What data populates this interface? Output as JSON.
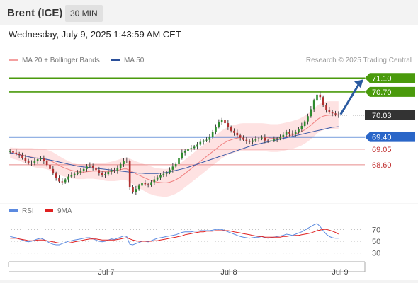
{
  "header": {
    "instrument": "Brent (ICE)",
    "timeframe": "30 MIN",
    "datetime": "Wednesday, July 9, 2025 1:43:59 AM CET"
  },
  "legend": {
    "ma20": "MA 20 + Bollinger Bands",
    "ma50": "MA 50",
    "credit": "Research © 2025 Trading Central"
  },
  "colors": {
    "resistance": "#4a9a0c",
    "support": "#2a66c8",
    "ma20": "#f08080",
    "band": "#fdd8d8",
    "ma50": "#3a5aa8",
    "candle_up": "#2e8b2e",
    "candle_down": "#b03030",
    "rsi": "#5b8ae0",
    "rsi_ma": "#e02020",
    "arrow": "#2a5aa0"
  },
  "chart_data": [
    {
      "type": "candlestick",
      "ylim": [
        67.6,
        71.35
      ],
      "x_ticks": [
        "Jul 7",
        "Jul 8",
        "Jul 9"
      ],
      "levels": [
        {
          "value": 71.1,
          "label": "71.10",
          "kind": "resistance"
        },
        {
          "value": 70.7,
          "label": "70.70",
          "kind": "resistance"
        },
        {
          "value": 69.4,
          "label": "69.40",
          "kind": "support"
        },
        {
          "value": 69.05,
          "label": "69.05",
          "kind": "support-minor"
        },
        {
          "value": 68.6,
          "label": "68.60",
          "kind": "support-minor"
        }
      ],
      "current_price": {
        "value": 70.03,
        "label": "70.03"
      },
      "close": [
        69.0,
        68.95,
        68.92,
        68.88,
        68.8,
        68.72,
        68.66,
        68.64,
        68.7,
        68.76,
        68.78,
        68.7,
        68.6,
        68.48,
        68.35,
        68.22,
        68.12,
        68.1,
        68.18,
        68.26,
        68.3,
        68.34,
        68.38,
        68.42,
        68.48,
        68.55,
        68.58,
        68.52,
        68.45,
        68.36,
        68.3,
        68.33,
        68.4,
        68.45,
        68.42,
        68.5,
        68.62,
        68.72,
        68.7,
        67.95,
        67.82,
        67.9,
        68.0,
        68.08,
        68.04,
        68.02,
        68.1,
        68.18,
        68.24,
        68.3,
        68.34,
        68.38,
        68.46,
        68.55,
        68.62,
        68.8,
        68.95,
        69.0,
        69.05,
        69.08,
        69.12,
        69.18,
        69.26,
        69.3,
        69.32,
        69.4,
        69.55,
        69.7,
        69.82,
        69.9,
        69.8,
        69.68,
        69.58,
        69.52,
        69.45,
        69.38,
        69.32,
        69.28,
        69.26,
        69.3,
        69.34,
        69.36,
        69.38,
        69.3,
        69.28,
        69.3,
        69.33,
        69.36,
        69.4,
        69.46,
        69.55,
        69.5,
        69.48,
        69.55,
        69.62,
        69.72,
        69.85,
        70.0,
        70.2,
        70.45,
        70.62,
        70.55,
        70.32,
        70.18,
        70.12,
        70.08,
        70.05,
        70.03
      ],
      "ma20": [
        68.95,
        68.93,
        68.92,
        68.9,
        68.88,
        68.86,
        68.84,
        68.82,
        68.8,
        68.79,
        68.78,
        68.77,
        68.75,
        68.72,
        68.68,
        68.63,
        68.58,
        68.54,
        68.5,
        68.47,
        68.44,
        68.42,
        68.4,
        68.39,
        68.39,
        68.4,
        68.41,
        68.42,
        68.42,
        68.42,
        68.41,
        68.4,
        68.4,
        68.41,
        68.42,
        68.44,
        68.46,
        68.48,
        68.48,
        68.44,
        68.39,
        68.34,
        68.3,
        68.26,
        68.22,
        68.18,
        68.15,
        68.12,
        68.1,
        68.09,
        68.08,
        68.08,
        68.1,
        68.13,
        68.17,
        68.22,
        68.28,
        68.35,
        68.42,
        68.49,
        68.56,
        68.63,
        68.7,
        68.77,
        68.84,
        68.91,
        68.98,
        69.05,
        69.12,
        69.19,
        69.24,
        69.29,
        69.32,
        69.35,
        69.37,
        69.39,
        69.4,
        69.4,
        69.4,
        69.4,
        69.4,
        69.4,
        69.4,
        69.39,
        69.38,
        69.37,
        69.37,
        69.37,
        69.38,
        69.4,
        69.42,
        69.44,
        69.46,
        69.49,
        69.52,
        69.56,
        69.61,
        69.67,
        69.74,
        69.82,
        69.9,
        69.96,
        70.0,
        70.02,
        70.03,
        70.03,
        70.03,
        70.03
      ],
      "ma50": [
        68.95,
        68.93,
        68.91,
        68.89,
        68.87,
        68.85,
        68.83,
        68.81,
        68.8,
        68.79,
        68.78,
        68.77,
        68.76,
        68.74,
        68.72,
        68.7,
        68.68,
        68.66,
        68.64,
        68.62,
        68.6,
        68.58,
        68.56,
        68.55,
        68.54,
        68.53,
        68.52,
        68.51,
        68.5,
        68.49,
        68.48,
        68.47,
        68.46,
        68.45,
        68.44,
        68.43,
        68.42,
        68.41,
        68.4,
        68.39,
        68.38,
        68.37,
        68.36,
        68.36,
        68.35,
        68.35,
        68.35,
        68.35,
        68.35,
        68.36,
        68.37,
        68.38,
        68.4,
        68.42,
        68.44,
        68.46,
        68.48,
        68.5,
        68.53,
        68.56,
        68.59,
        68.62,
        68.65,
        68.68,
        68.71,
        68.74,
        68.77,
        68.8,
        68.83,
        68.86,
        68.89,
        68.92,
        68.95,
        68.98,
        69.01,
        69.04,
        69.07,
        69.1,
        69.13,
        69.16,
        69.18,
        69.2,
        69.22,
        69.24,
        69.26,
        69.28,
        69.3,
        69.32,
        69.34,
        69.36,
        69.38,
        69.4,
        69.42,
        69.44,
        69.46,
        69.48,
        69.5,
        69.52,
        69.54,
        69.56,
        69.58,
        69.6,
        69.62,
        69.64,
        69.66,
        69.68,
        69.69,
        69.7
      ],
      "bollinger_width": [
        0.15,
        0.16,
        0.17,
        0.18,
        0.2,
        0.22,
        0.24,
        0.26,
        0.27,
        0.28,
        0.28,
        0.28,
        0.28,
        0.28,
        0.28,
        0.28,
        0.27,
        0.26,
        0.25,
        0.24,
        0.23,
        0.22,
        0.21,
        0.2,
        0.2,
        0.2,
        0.21,
        0.22,
        0.23,
        0.24,
        0.25,
        0.26,
        0.27,
        0.28,
        0.29,
        0.3,
        0.31,
        0.32,
        0.33,
        0.34,
        0.35,
        0.36,
        0.37,
        0.38,
        0.39,
        0.4,
        0.4,
        0.4,
        0.4,
        0.4,
        0.4,
        0.4,
        0.4,
        0.4,
        0.4,
        0.4,
        0.4,
        0.4,
        0.4,
        0.4,
        0.4,
        0.4,
        0.4,
        0.4,
        0.4,
        0.4,
        0.4,
        0.4,
        0.4,
        0.4,
        0.4,
        0.4,
        0.4,
        0.4,
        0.4,
        0.4,
        0.4,
        0.4,
        0.4,
        0.4,
        0.4,
        0.4,
        0.4,
        0.4,
        0.4,
        0.4,
        0.4,
        0.4,
        0.4,
        0.4,
        0.4,
        0.4,
        0.4,
        0.4,
        0.4,
        0.4,
        0.4,
        0.4,
        0.4,
        0.4,
        0.4,
        0.4,
        0.4,
        0.4,
        0.4,
        0.4,
        0.4,
        0.4
      ],
      "projection_target": 71.1
    },
    {
      "type": "line",
      "title": "RSI",
      "series_labels": [
        "RSI",
        "9MA"
      ],
      "ylim": [
        20,
        80
      ],
      "y_ticks": [
        70,
        50,
        30
      ],
      "reference_line": 55,
      "rsi": [
        58,
        57,
        56,
        54,
        52,
        50,
        49,
        50,
        52,
        54,
        55,
        53,
        50,
        47,
        45,
        44,
        44,
        46,
        48,
        50,
        51,
        52,
        53,
        54,
        55,
        56,
        56,
        54,
        52,
        50,
        49,
        50,
        52,
        54,
        53,
        55,
        57,
        59,
        58,
        45,
        44,
        46,
        48,
        50,
        50,
        49,
        51,
        53,
        55,
        56,
        57,
        58,
        59,
        60,
        61,
        63,
        65,
        66,
        66,
        66,
        67,
        67,
        68,
        68,
        68,
        68,
        69,
        70,
        70,
        70,
        68,
        66,
        64,
        62,
        60,
        58,
        57,
        56,
        55,
        56,
        57,
        57,
        58,
        56,
        55,
        56,
        57,
        58,
        59,
        60,
        62,
        61,
        60,
        62,
        64,
        66,
        69,
        72,
        75,
        78,
        80,
        75,
        68,
        62,
        58,
        56,
        55,
        55
      ],
      "rsi_ma": [
        55,
        55,
        55,
        54,
        53,
        52,
        51,
        51,
        51,
        52,
        52,
        52,
        51,
        50,
        49,
        48,
        47,
        47,
        47,
        47,
        48,
        49,
        50,
        51,
        52,
        53,
        54,
        54,
        54,
        53,
        52,
        52,
        52,
        52,
        52,
        53,
        54,
        55,
        56,
        54,
        52,
        51,
        50,
        50,
        50,
        50,
        50,
        51,
        51,
        52,
        53,
        54,
        55,
        56,
        57,
        58,
        59,
        61,
        62,
        63,
        64,
        65,
        66,
        66,
        67,
        67,
        67,
        68,
        68,
        68,
        68,
        68,
        67,
        66,
        65,
        64,
        63,
        62,
        61,
        60,
        59,
        58,
        58,
        57,
        57,
        57,
        57,
        57,
        57,
        58,
        58,
        59,
        59,
        60,
        60,
        61,
        62,
        63,
        64,
        66,
        68,
        69,
        70,
        70,
        69,
        67,
        65,
        62
      ]
    }
  ]
}
